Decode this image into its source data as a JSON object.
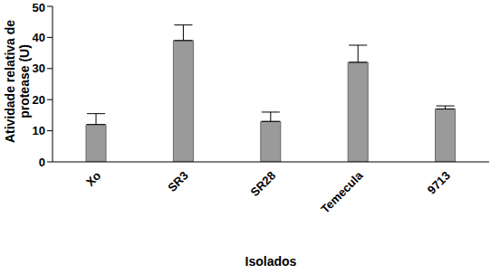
{
  "chart_data": {
    "type": "bar",
    "x_label": "Isolados",
    "y_label": "Atividade relativa de protease (U)",
    "categories": [
      "Xo",
      "SR3",
      "SR28",
      "Temecula",
      "9713"
    ],
    "values": [
      12,
      39,
      13,
      32,
      17
    ],
    "errors": [
      3.5,
      5,
      3,
      5.5,
      1
    ],
    "color": "#9a9a9a",
    "ylim": [
      0,
      50
    ],
    "yticks": [
      0,
      10,
      20,
      30,
      40,
      50
    ],
    "grid": false
  }
}
